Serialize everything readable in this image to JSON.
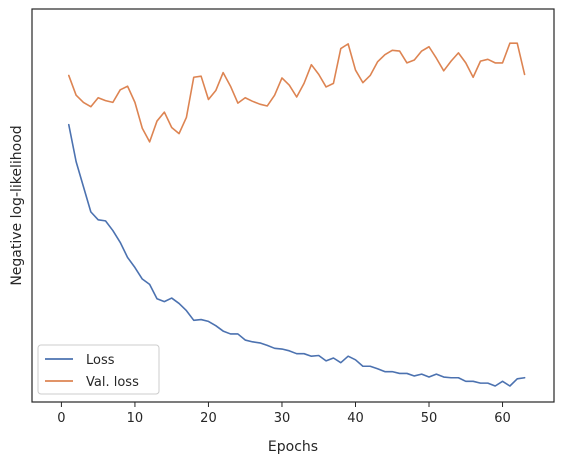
{
  "chart_data": {
    "type": "line",
    "title": "",
    "xlabel": "Epochs",
    "ylabel": "Negative log-likelihood",
    "xlim": [
      -4,
      67
    ],
    "ylim": [
      0,
      100
    ],
    "xticks": [
      0,
      10,
      20,
      30,
      40,
      50,
      60
    ],
    "yticks_shown": false,
    "grid": false,
    "legend_position": "lower-left",
    "x": [
      1,
      2,
      3,
      4,
      5,
      6,
      7,
      8,
      9,
      10,
      11,
      12,
      13,
      14,
      15,
      16,
      17,
      18,
      19,
      20,
      21,
      22,
      23,
      24,
      25,
      26,
      27,
      28,
      29,
      30,
      31,
      32,
      33,
      34,
      35,
      36,
      37,
      38,
      39,
      40,
      41,
      42,
      43,
      44,
      45,
      46,
      47,
      48,
      49,
      50,
      51,
      52,
      53,
      54,
      55,
      56,
      57,
      58,
      59,
      60,
      61,
      62,
      63
    ],
    "series": [
      {
        "name": "Loss",
        "color": "#4c72b0",
        "values": [
          72.8,
          62.5,
          55.5,
          48.5,
          46.3,
          46.0,
          43.3,
          40.0,
          35.8,
          33.0,
          29.8,
          28.3,
          24.3,
          23.5,
          24.5,
          23.0,
          21.0,
          18.3,
          18.5,
          18.0,
          16.8,
          15.3,
          14.5,
          14.5,
          12.8,
          12.3,
          12.0,
          11.3,
          10.5,
          10.3,
          9.8,
          9.0,
          9.0,
          8.3,
          8.5,
          7.0,
          7.8,
          6.5,
          8.3,
          7.3,
          5.5,
          5.5,
          4.8,
          4.0,
          4.0,
          3.5,
          3.5,
          2.8,
          3.3,
          2.5,
          3.3,
          2.5,
          2.3,
          2.3,
          1.3,
          1.3,
          0.8,
          0.8,
          0.0,
          1.3,
          0.0,
          2.0,
          2.3
        ]
      },
      {
        "name": "Val. loss",
        "color": "#dd8452",
        "values": [
          86.5,
          81.0,
          79.0,
          77.8,
          80.3,
          79.5,
          79.0,
          82.5,
          83.5,
          79.0,
          71.8,
          68.0,
          73.8,
          76.3,
          72.0,
          70.3,
          74.8,
          86.0,
          86.3,
          79.8,
          82.3,
          87.3,
          83.5,
          78.8,
          80.3,
          79.3,
          78.5,
          78.0,
          81.0,
          85.8,
          83.8,
          80.5,
          84.3,
          89.5,
          86.8,
          83.3,
          84.3,
          94.0,
          95.3,
          88.0,
          84.5,
          86.5,
          90.3,
          92.3,
          93.5,
          93.3,
          90.0,
          90.8,
          93.3,
          94.5,
          91.3,
          87.8,
          90.5,
          92.8,
          90.0,
          86.0,
          90.5,
          91.0,
          90.0,
          90.0,
          95.5,
          95.5,
          86.8
        ]
      }
    ]
  }
}
